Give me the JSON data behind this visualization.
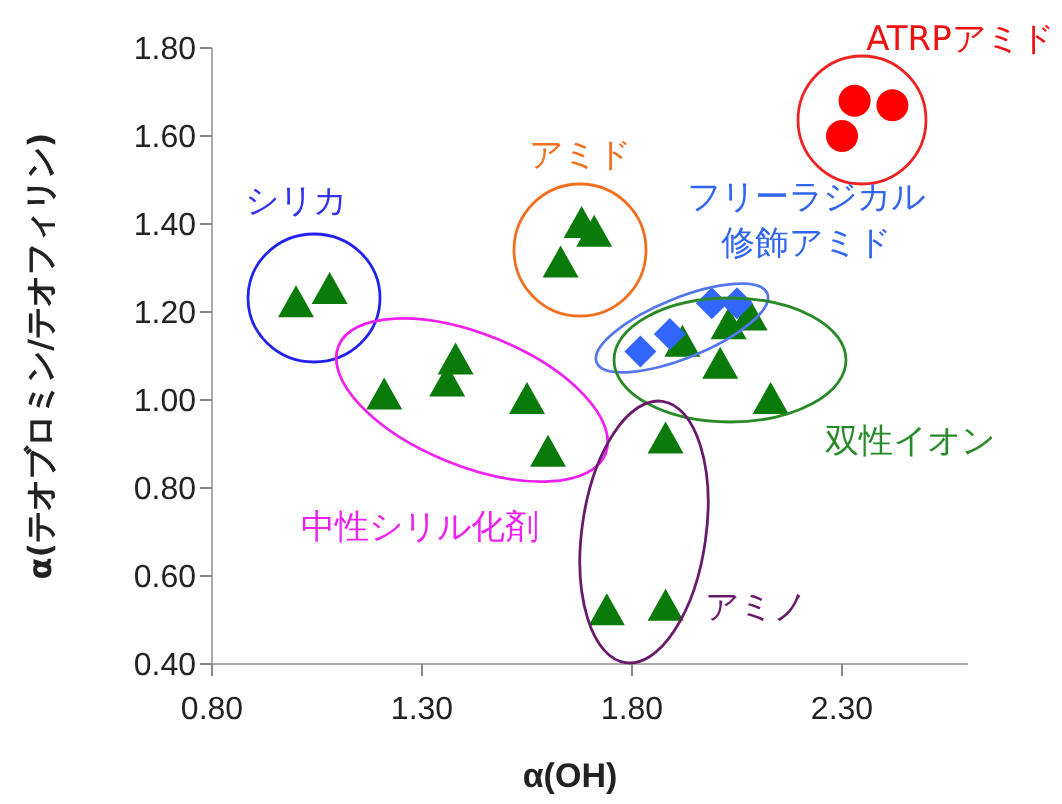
{
  "chart_data": {
    "type": "scatter",
    "xlabel": "α(OH)",
    "ylabel": "α(テオブロミン/テオフィリン)",
    "xlim": [
      0.8,
      2.6
    ],
    "xticks": [
      {
        "value": 0.8,
        "label": "0.80"
      },
      {
        "value": 1.3,
        "label": "1.30"
      },
      {
        "value": 1.8,
        "label": "1.80"
      },
      {
        "value": 2.3,
        "label": "2.30"
      }
    ],
    "ylim": [
      0.4,
      1.8
    ],
    "yticks": [
      {
        "value": 0.4,
        "label": "0.40"
      },
      {
        "value": 0.6,
        "label": "0.60"
      },
      {
        "value": 0.8,
        "label": "0.80"
      },
      {
        "value": 1.0,
        "label": "1.00"
      },
      {
        "value": 1.2,
        "label": "1.20"
      },
      {
        "value": 1.4,
        "label": "1.40"
      },
      {
        "value": 1.6,
        "label": "1.60"
      },
      {
        "value": 1.8,
        "label": "1.80"
      }
    ],
    "series": [
      {
        "color": "#0a7a0a",
        "marker": "triangle",
        "x": [
          1.0,
          1.08,
          1.68,
          1.71,
          1.63,
          1.21,
          1.38,
          1.36,
          1.55,
          1.6,
          1.74,
          1.88,
          1.88,
          2.01,
          2.13,
          1.92,
          2.03,
          2.08
        ],
        "values": [
          1.22,
          1.25,
          1.4,
          1.38,
          1.31,
          1.01,
          1.09,
          1.04,
          1.0,
          0.88,
          0.52,
          0.53,
          0.91,
          1.08,
          1.0,
          1.13,
          1.17,
          1.19
        ]
      },
      {
        "color": "#3366ff",
        "marker": "diamond",
        "x": [
          1.82,
          1.89,
          1.99,
          2.05
        ],
        "values": [
          1.11,
          1.15,
          1.22,
          1.22
        ]
      },
      {
        "color": "#ff0000",
        "marker": "circle",
        "x": [
          2.33,
          2.42,
          2.3
        ],
        "values": [
          1.68,
          1.67,
          1.6
        ]
      }
    ],
    "annotations": [
      "シリカ",
      "アミド",
      "ATRPアミド",
      "フリーラジカル修飾アミド",
      "双性イオン",
      "中性シリル化剤",
      "アミノ"
    ]
  }
}
